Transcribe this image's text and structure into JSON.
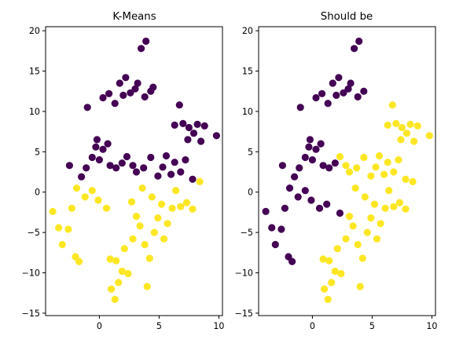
{
  "colors": {
    "cluster_purple": "#440154",
    "cluster_yellow": "#fde725",
    "axes": "#000000",
    "background": "#ffffff"
  },
  "chart_data": [
    {
      "type": "scatter",
      "title": "K-Means",
      "xlabel": "",
      "ylabel": "",
      "xlim": [
        -4.5,
        10.3
      ],
      "ylim": [
        -15.3,
        20.5
      ],
      "xticks": [
        0,
        5,
        10
      ],
      "yticks": [
        -15,
        -10,
        -5,
        0,
        5,
        10,
        15,
        20
      ],
      "grid": false,
      "legend": "none",
      "seed": 7,
      "note_seed": "",
      "series": [
        {
          "color": "#440154",
          "points": [
            [
              -1.0,
              10.5
            ],
            [
              0.3,
              11.7
            ],
            [
              0.8,
              12.2
            ],
            [
              1.3,
              11.0
            ],
            [
              1.7,
              13.5
            ],
            [
              2.2,
              14.2
            ],
            [
              2.0,
              12.0
            ],
            [
              2.6,
              12.3
            ],
            [
              3.0,
              12.8
            ],
            [
              3.5,
              17.8
            ],
            [
              3.9,
              18.7
            ],
            [
              3.2,
              13.5
            ],
            [
              3.8,
              11.8
            ],
            [
              4.3,
              12.5
            ],
            [
              4.5,
              13.0
            ],
            [
              6.7,
              10.8
            ],
            [
              6.3,
              8.3
            ],
            [
              7.0,
              8.5
            ],
            [
              7.5,
              8.0
            ],
            [
              8.2,
              8.4
            ],
            [
              8.8,
              8.2
            ],
            [
              8.5,
              6.3
            ],
            [
              9.8,
              7.0
            ],
            [
              7.9,
              7.3
            ],
            [
              7.4,
              6.5
            ],
            [
              -2.5,
              3.3
            ],
            [
              -1.5,
              1.9
            ],
            [
              -1.1,
              3.0
            ],
            [
              -0.6,
              4.3
            ],
            [
              0.0,
              4.0
            ],
            [
              0.3,
              5.3
            ],
            [
              0.7,
              6.0
            ],
            [
              -0.2,
              6.5
            ],
            [
              -0.3,
              5.6
            ],
            [
              0.9,
              3.3
            ],
            [
              1.4,
              3.0
            ],
            [
              1.9,
              3.6
            ],
            [
              2.3,
              4.4
            ],
            [
              2.8,
              3.3
            ],
            [
              3.1,
              2.5
            ],
            [
              3.7,
              3.0
            ],
            [
              4.3,
              4.3
            ],
            [
              4.9,
              2.0
            ],
            [
              5.3,
              3.1
            ],
            [
              5.6,
              4.5
            ],
            [
              6.0,
              2.2
            ],
            [
              6.3,
              3.7
            ],
            [
              6.8,
              2.5
            ],
            [
              7.2,
              4.0
            ],
            [
              7.8,
              1.6
            ]
          ]
        },
        {
          "color": "#fde725",
          "points": [
            [
              -3.9,
              -2.4
            ],
            [
              -3.4,
              -4.4
            ],
            [
              -3.1,
              -6.5
            ],
            [
              -2.6,
              -4.6
            ],
            [
              -2.3,
              -2.0
            ],
            [
              -2.0,
              -8.0
            ],
            [
              -1.7,
              -8.6
            ],
            [
              -1.9,
              0.5
            ],
            [
              -1.2,
              -0.6
            ],
            [
              -0.6,
              0.2
            ],
            [
              -0.1,
              -1.0
            ],
            [
              0.6,
              -2.0
            ],
            [
              0.9,
              -8.3
            ],
            [
              1.4,
              -8.5
            ],
            [
              1.0,
              -12.0
            ],
            [
              1.3,
              -13.3
            ],
            [
              1.6,
              -11.2
            ],
            [
              1.9,
              -9.8
            ],
            [
              2.4,
              -10.1
            ],
            [
              2.1,
              -7.0
            ],
            [
              2.8,
              -5.8
            ],
            [
              3.1,
              -3.0
            ],
            [
              3.4,
              -4.2
            ],
            [
              3.8,
              -6.5
            ],
            [
              4.0,
              -11.7
            ],
            [
              4.2,
              -8.2
            ],
            [
              4.6,
              -5.0
            ],
            [
              4.9,
              -3.2
            ],
            [
              5.2,
              -1.5
            ],
            [
              5.4,
              -5.8
            ],
            [
              5.7,
              -3.9
            ],
            [
              6.1,
              -2.0
            ],
            [
              6.4,
              0.2
            ],
            [
              6.8,
              -1.8
            ],
            [
              7.3,
              -1.3
            ],
            [
              7.8,
              -2.1
            ],
            [
              8.4,
              1.3
            ],
            [
              4.4,
              -0.6
            ],
            [
              3.6,
              0.5
            ],
            [
              2.7,
              -1.2
            ]
          ]
        }
      ]
    },
    {
      "type": "scatter",
      "title": "Should be",
      "xlabel": "",
      "ylabel": "",
      "xlim": [
        -4.5,
        10.3
      ],
      "ylim": [
        -15.3,
        20.5
      ],
      "xticks": [
        0,
        5,
        10
      ],
      "yticks": [
        -15,
        -10,
        -5,
        0,
        5,
        10,
        15,
        20
      ],
      "grid": false,
      "legend": "none",
      "series": [
        {
          "color": "#440154",
          "points": [
            [
              -1.0,
              10.5
            ],
            [
              0.3,
              11.7
            ],
            [
              0.8,
              12.2
            ],
            [
              1.3,
              11.0
            ],
            [
              1.7,
              13.5
            ],
            [
              2.2,
              14.2
            ],
            [
              2.0,
              12.0
            ],
            [
              2.6,
              12.3
            ],
            [
              3.0,
              12.8
            ],
            [
              3.5,
              17.8
            ],
            [
              3.9,
              18.7
            ],
            [
              3.2,
              13.5
            ],
            [
              3.8,
              11.8
            ],
            [
              4.3,
              12.5
            ],
            [
              -3.9,
              -2.4
            ],
            [
              -3.4,
              -4.4
            ],
            [
              -3.1,
              -6.5
            ],
            [
              -2.6,
              -4.6
            ],
            [
              -2.3,
              -2.0
            ],
            [
              -2.0,
              -8.0
            ],
            [
              -1.7,
              -8.6
            ],
            [
              -2.5,
              3.3
            ],
            [
              -1.5,
              1.9
            ],
            [
              -1.1,
              3.0
            ],
            [
              -0.6,
              4.3
            ],
            [
              0.0,
              4.0
            ],
            [
              0.3,
              5.3
            ],
            [
              0.7,
              6.0
            ],
            [
              -0.2,
              6.5
            ],
            [
              -0.3,
              5.6
            ],
            [
              0.9,
              3.3
            ],
            [
              1.4,
              3.0
            ],
            [
              1.9,
              3.6
            ],
            [
              -1.9,
              0.5
            ],
            [
              -1.2,
              -0.6
            ],
            [
              -0.6,
              0.2
            ],
            [
              -0.1,
              -1.0
            ],
            [
              0.6,
              -2.0
            ],
            [
              1.2,
              -1.5
            ],
            [
              2.3,
              -2.6
            ]
          ]
        },
        {
          "color": "#fde725",
          "points": [
            [
              6.7,
              10.8
            ],
            [
              6.3,
              8.3
            ],
            [
              7.0,
              8.5
            ],
            [
              7.5,
              8.0
            ],
            [
              8.2,
              8.4
            ],
            [
              8.8,
              8.2
            ],
            [
              8.5,
              6.3
            ],
            [
              9.8,
              7.0
            ],
            [
              7.9,
              7.3
            ],
            [
              7.4,
              6.5
            ],
            [
              2.3,
              4.4
            ],
            [
              2.8,
              3.3
            ],
            [
              3.1,
              2.5
            ],
            [
              3.7,
              3.0
            ],
            [
              4.3,
              4.3
            ],
            [
              4.9,
              2.0
            ],
            [
              5.3,
              3.1
            ],
            [
              5.6,
              4.5
            ],
            [
              6.0,
              2.2
            ],
            [
              6.3,
              3.7
            ],
            [
              6.8,
              2.5
            ],
            [
              7.2,
              4.0
            ],
            [
              7.8,
              1.6
            ],
            [
              0.9,
              -8.3
            ],
            [
              1.4,
              -8.5
            ],
            [
              1.0,
              -12.0
            ],
            [
              1.3,
              -13.3
            ],
            [
              1.6,
              -11.2
            ],
            [
              1.9,
              -9.8
            ],
            [
              2.4,
              -10.1
            ],
            [
              2.1,
              -7.0
            ],
            [
              2.8,
              -5.8
            ],
            [
              3.1,
              -3.0
            ],
            [
              3.4,
              -4.2
            ],
            [
              3.8,
              -6.5
            ],
            [
              4.0,
              -11.7
            ],
            [
              4.2,
              -8.2
            ],
            [
              4.6,
              -5.0
            ],
            [
              4.9,
              -3.2
            ],
            [
              5.2,
              -1.5
            ],
            [
              5.4,
              -5.8
            ],
            [
              5.7,
              -3.9
            ],
            [
              6.1,
              -2.0
            ],
            [
              6.4,
              0.2
            ],
            [
              6.8,
              -1.8
            ],
            [
              7.3,
              -1.3
            ],
            [
              7.8,
              -2.1
            ],
            [
              8.4,
              1.3
            ],
            [
              4.4,
              -0.6
            ],
            [
              3.6,
              0.5
            ]
          ]
        }
      ]
    }
  ]
}
